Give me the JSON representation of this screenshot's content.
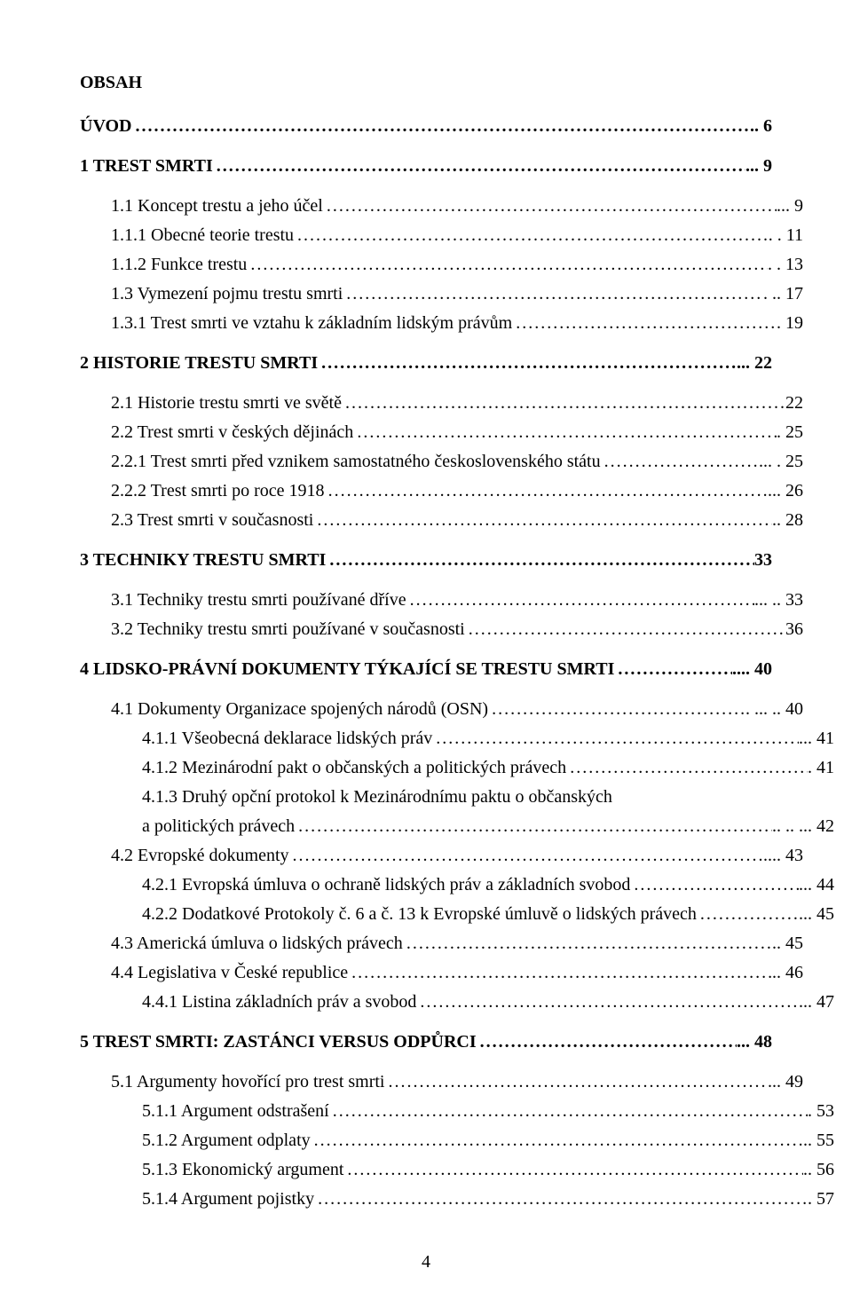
{
  "title": "OBSAH",
  "page_number": "4",
  "leader_char": ".",
  "leader_len": 200,
  "entries": [
    {
      "label": "ÚVOD",
      "page": ".. 6",
      "bold": true,
      "indent": 0
    },
    {
      "blank": true
    },
    {
      "label": "1 TREST SMRTI",
      "page": "... 9",
      "bold": true,
      "indent": 0
    },
    {
      "blank": true
    },
    {
      "label": "1.1 Koncept trestu a jeho účel",
      "page": "... 9",
      "indent": 1
    },
    {
      "label": "1.1.1 Obecné teorie trestu",
      "page": ". . 11",
      "indent": 1
    },
    {
      "label": "1.1.2 Funkce trestu",
      "page": ". . 13",
      "indent": 1
    },
    {
      "label": "1.3 Vymezení pojmu trestu smrti",
      "page": ". .. 17",
      "indent": 1
    },
    {
      "label": "1.3.1 Trest smrti ve vztahu k základním lidským právům",
      "page": ". 19",
      "indent": 1
    },
    {
      "blank": true
    },
    {
      "label": "2 HISTORIE TRESTU SMRTI",
      "page": "... 22",
      "bold": true,
      "indent": 0
    },
    {
      "blank": true
    },
    {
      "label": "2.1 Historie trestu smrti ve světě",
      "page": " 22",
      "indent": 1
    },
    {
      "label": "2.2 Trest smrti v českých dějinách",
      "page": ". 25",
      "indent": 1
    },
    {
      "label": "2.2.1 Trest smrti před vznikem samostatného československého státu",
      "page": "... . 25",
      "indent": 1
    },
    {
      "label": "2.2.2 Trest smrti po roce 1918",
      "page": "... 26",
      "indent": 1
    },
    {
      "label": "2.3 Trest smrti v současnosti",
      "page": ".. 28",
      "indent": 1
    },
    {
      "blank": true
    },
    {
      "label": "3 TECHNIKY TRESTU SMRTI",
      "page": " 33",
      "bold": true,
      "indent": 0
    },
    {
      "blank": true
    },
    {
      "label": "3.1 Techniky trestu smrti používané dříve",
      "page": "... .. 33",
      "indent": 1
    },
    {
      "label": "3.2 Techniky trestu smrti používané v současnosti",
      "page": " 36",
      "indent": 1
    },
    {
      "blank": true
    },
    {
      "label": "4 LIDSKO-PRÁVNÍ DOKUMENTY TÝKAJÍCÍ SE TRESTU SMRTI",
      "page": ".... 40",
      "bold": true,
      "indent": 0
    },
    {
      "blank": true
    },
    {
      "label": "4.1 Dokumenty Organizace spojených národů (OSN)",
      "page": ". ... .. 40",
      "indent": 1
    },
    {
      "label": "4.1.1 Všeobecná deklarace lidských práv",
      "page": "... 41",
      "indent": 2
    },
    {
      "label": "4.1.2 Mezinárodní pakt o občanských a politických právech",
      "page": ". 41",
      "indent": 2
    },
    {
      "label": "4.1.3 Druhý opční protokol k Mezinárodnímu paktu o občanských",
      "only_label": true,
      "indent": 2
    },
    {
      "label": "a politických právech",
      "page": ".. .. ... 42",
      "indent": 2
    },
    {
      "label": "4.2 Evropské dokumenty",
      "page": ".... 43",
      "indent": 1
    },
    {
      "label": "4.2.1 Evropská úmluva o ochraně lidských práv a základních svobod",
      "page": "... 44",
      "indent": 2
    },
    {
      "label": "4.2.2 Dodatkové Protokoly č. 6 a č. 13 k Evropské úmluvě o lidských právech",
      "page": "... 45",
      "indent": 2
    },
    {
      "label": "4.3 Americká úmluva o lidských právech",
      "page": ".. 45",
      "indent": 1
    },
    {
      "label": "4.4 Legislativa v České republice",
      "page": ".. 46",
      "indent": 1
    },
    {
      "label": "4.4.1 Listina základních práv a svobod",
      "page": "... 47",
      "indent": 2
    },
    {
      "blank": true
    },
    {
      "label": "5 TREST SMRTI: ZASTÁNCI VERSUS ODPŮRCI",
      "page": "... 48",
      "bold": true,
      "indent": 0
    },
    {
      "blank": true
    },
    {
      "label": "5.1 Argumenty hovořící pro trest smrti",
      "page": "... 49",
      "indent": 1
    },
    {
      "label": "5.1.1 Argument odstrašení",
      "page": ". 53",
      "indent": 2
    },
    {
      "label": "5.1.2 Argument odplaty",
      "page": ".. 55",
      "indent": 2
    },
    {
      "label": "5.1.3 Ekonomický argument",
      "page": ".. 56",
      "indent": 2
    },
    {
      "label": "5.1.4 Argument pojistky",
      "page": ". 57",
      "indent": 2
    }
  ]
}
